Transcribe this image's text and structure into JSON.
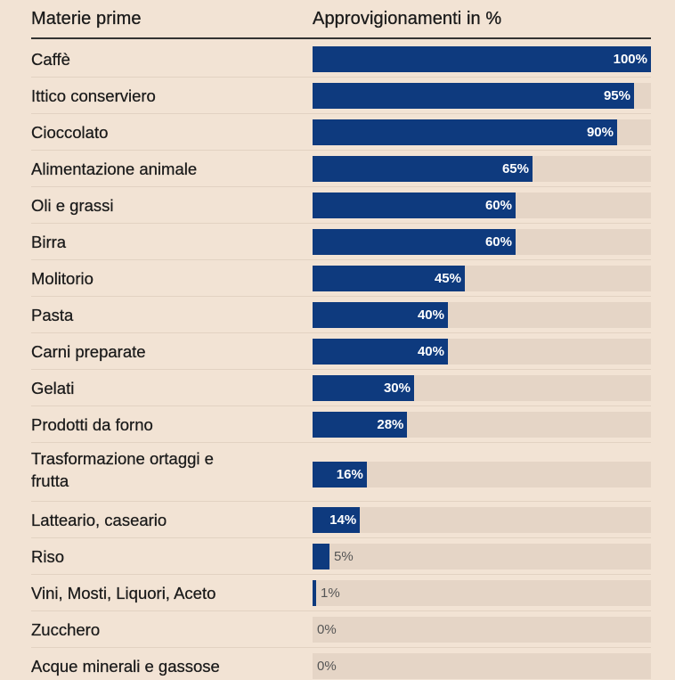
{
  "chart_data": {
    "type": "bar",
    "orientation": "horizontal",
    "column_headers": [
      "Materie prime",
      "Approvigionamenti in %"
    ],
    "x_range": [
      0,
      100
    ],
    "colors": {
      "bar": "#0e3a7e",
      "track": "#e5d5c6",
      "background": "#f2e3d4"
    },
    "categories": [
      "Caffè",
      "Ittico conserviero",
      "Cioccolato",
      "Alimentazione animale",
      "Oli e grassi",
      "Birra",
      "Molitorio",
      "Pasta",
      "Carni preparate",
      "Gelati",
      "Prodotti da forno",
      "Trasformazione ortaggi e frutta",
      "Latteario, caseario",
      "Riso",
      "Vini, Mosti, Liquori, Aceto",
      "Zucchero",
      "Acque minerali e gassose"
    ],
    "values": [
      100,
      95,
      90,
      65,
      60,
      60,
      45,
      40,
      40,
      30,
      28,
      16,
      14,
      5,
      1,
      0,
      0
    ],
    "labels": [
      "100%",
      "95%",
      "90%",
      "65%",
      "60%",
      "60%",
      "45%",
      "40%",
      "40%",
      "30%",
      "28%",
      "16%",
      "14%",
      "5%",
      "1%",
      "0%",
      "0%"
    ]
  }
}
